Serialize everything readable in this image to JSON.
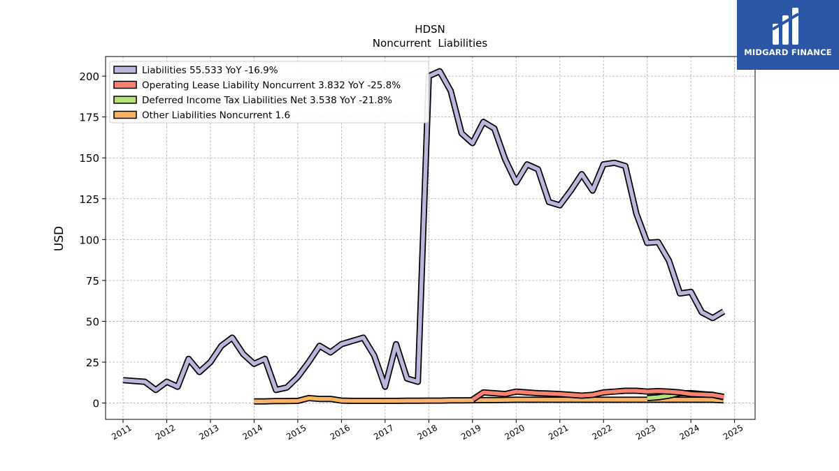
{
  "chart_data": {
    "type": "line",
    "title": "HDSN",
    "subtitle": "Noncurrent  Liabilities",
    "ylabel": "USD",
    "xlabel": "",
    "xlim": [
      2010.6,
      2025.47
    ],
    "ylim": [
      -10,
      212
    ],
    "xticks": [
      2011,
      2012,
      2013,
      2014,
      2015,
      2016,
      2017,
      2018,
      2019,
      2020,
      2021,
      2022,
      2023,
      2024,
      2025
    ],
    "yticks": [
      0,
      25,
      50,
      75,
      100,
      125,
      150,
      175,
      200
    ],
    "grid": true,
    "legend_position": "top-left",
    "series": [
      {
        "name": "Liabilities",
        "legend": "Liabilities  55.533 YoY -16.9%",
        "color": "#b9b7dc",
        "points": [
          [
            2011.0,
            14
          ],
          [
            2011.25,
            13.5
          ],
          [
            2011.5,
            13
          ],
          [
            2011.75,
            8
          ],
          [
            2012.0,
            13
          ],
          [
            2012.25,
            10
          ],
          [
            2012.5,
            27
          ],
          [
            2012.75,
            19
          ],
          [
            2013.0,
            25
          ],
          [
            2013.25,
            35
          ],
          [
            2013.5,
            40
          ],
          [
            2013.75,
            30
          ],
          [
            2014.0,
            24
          ],
          [
            2014.25,
            27
          ],
          [
            2014.5,
            8
          ],
          [
            2014.75,
            9.5
          ],
          [
            2015.0,
            16
          ],
          [
            2015.25,
            25
          ],
          [
            2015.5,
            35
          ],
          [
            2015.75,
            31
          ],
          [
            2016.0,
            36
          ],
          [
            2016.25,
            38
          ],
          [
            2016.5,
            40
          ],
          [
            2016.75,
            29
          ],
          [
            2017.0,
            10
          ],
          [
            2017.25,
            36
          ],
          [
            2017.5,
            15
          ],
          [
            2017.75,
            13
          ],
          [
            2018.0,
            200
          ],
          [
            2018.25,
            203
          ],
          [
            2018.5,
            191
          ],
          [
            2018.75,
            165
          ],
          [
            2019.0,
            159
          ],
          [
            2019.25,
            172
          ],
          [
            2019.5,
            168
          ],
          [
            2019.75,
            149
          ],
          [
            2020.0,
            135
          ],
          [
            2020.25,
            146
          ],
          [
            2020.5,
            143
          ],
          [
            2020.75,
            123
          ],
          [
            2021.0,
            121
          ],
          [
            2021.25,
            130
          ],
          [
            2021.5,
            140
          ],
          [
            2021.75,
            130
          ],
          [
            2022.0,
            146
          ],
          [
            2022.25,
            147
          ],
          [
            2022.5,
            145
          ],
          [
            2022.75,
            116
          ],
          [
            2023.0,
            98
          ],
          [
            2023.25,
            98.5
          ],
          [
            2023.5,
            87
          ],
          [
            2023.75,
            67
          ],
          [
            2024.0,
            68
          ],
          [
            2024.25,
            55.5
          ],
          [
            2024.5,
            52
          ],
          [
            2024.75,
            56
          ]
        ]
      },
      {
        "name": "Operating Lease Liability Noncurrent",
        "legend": "Operating Lease Liability Noncurrent  3.832 YoY -25.8%",
        "color": "#f88272",
        "points": [
          [
            2019.0,
            2
          ],
          [
            2019.25,
            6.5
          ],
          [
            2019.5,
            6
          ],
          [
            2019.75,
            5.5
          ],
          [
            2020.0,
            7
          ],
          [
            2020.25,
            6.5
          ],
          [
            2020.5,
            6
          ],
          [
            2020.75,
            5.8
          ],
          [
            2021.0,
            5.5
          ],
          [
            2021.25,
            5
          ],
          [
            2021.5,
            4.5
          ],
          [
            2021.75,
            5
          ],
          [
            2022.0,
            6.5
          ],
          [
            2022.25,
            7
          ],
          [
            2022.5,
            7.5
          ],
          [
            2022.75,
            7.5
          ],
          [
            2023.0,
            7
          ],
          [
            2023.25,
            7.3
          ],
          [
            2023.5,
            7
          ],
          [
            2023.75,
            6.5
          ],
          [
            2024.0,
            5.5
          ],
          [
            2024.25,
            5.2
          ],
          [
            2024.5,
            5
          ],
          [
            2024.75,
            3.8
          ]
        ]
      },
      {
        "name": "Deferred Income Tax Liabilities Net",
        "legend": "Deferred Income Tax Liabilities Net  3.538 YoY -21.8%",
        "color": "#b5e27a",
        "points": [
          [
            2023.0,
            3
          ],
          [
            2023.25,
            3.5
          ],
          [
            2023.5,
            4.5
          ],
          [
            2023.75,
            6
          ],
          [
            2024.0,
            6
          ],
          [
            2024.25,
            5.5
          ],
          [
            2024.5,
            5
          ],
          [
            2024.75,
            3.5
          ]
        ]
      },
      {
        "name": "Other Liabilities Noncurrent",
        "legend": "Other Liabilities Noncurrent  1.6",
        "color": "#f8b466",
        "points": [
          [
            2014.0,
            1
          ],
          [
            2014.25,
            1
          ],
          [
            2014.5,
            1.2
          ],
          [
            2014.75,
            1.2
          ],
          [
            2015.0,
            1.3
          ],
          [
            2015.25,
            3
          ],
          [
            2015.5,
            2.5
          ],
          [
            2015.75,
            2.5
          ],
          [
            2016.0,
            1.5
          ],
          [
            2016.25,
            1.3
          ],
          [
            2016.5,
            1.3
          ],
          [
            2016.75,
            1.3
          ],
          [
            2017.0,
            1.3
          ],
          [
            2017.25,
            1.3
          ],
          [
            2017.5,
            1.4
          ],
          [
            2017.75,
            1.4
          ],
          [
            2018.0,
            1.5
          ],
          [
            2018.25,
            1.5
          ],
          [
            2018.5,
            1.6
          ],
          [
            2018.75,
            1.6
          ],
          [
            2019.0,
            1.7
          ],
          [
            2019.25,
            1.8
          ],
          [
            2019.5,
            1.8
          ],
          [
            2019.75,
            1.9
          ],
          [
            2020.0,
            2
          ],
          [
            2020.25,
            2
          ],
          [
            2020.5,
            2
          ],
          [
            2020.75,
            2
          ],
          [
            2021.0,
            2
          ],
          [
            2021.25,
            2
          ],
          [
            2021.5,
            2
          ],
          [
            2021.75,
            2
          ],
          [
            2022.0,
            2
          ],
          [
            2022.25,
            2
          ],
          [
            2022.5,
            2
          ],
          [
            2022.75,
            2
          ],
          [
            2023.0,
            2
          ],
          [
            2023.25,
            2
          ],
          [
            2023.5,
            2
          ],
          [
            2023.75,
            2
          ],
          [
            2024.0,
            2
          ],
          [
            2024.25,
            2
          ],
          [
            2024.5,
            2
          ],
          [
            2024.75,
            1.6
          ]
        ]
      }
    ]
  },
  "brand": {
    "name": "MIDGARD FINANCE",
    "bg_color": "#2b55a5"
  }
}
